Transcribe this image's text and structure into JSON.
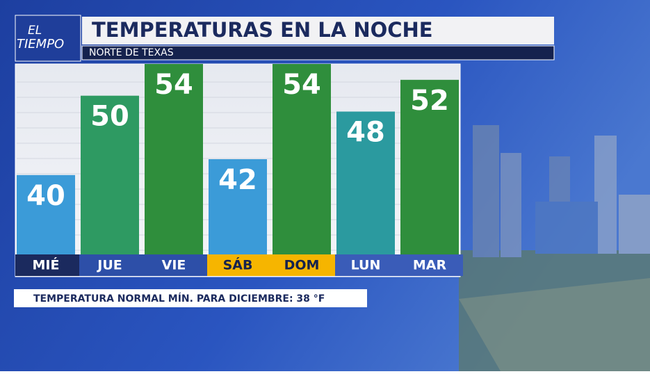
{
  "logo": {
    "line1": "EL",
    "line2": "TIEMPO"
  },
  "chart_data": {
    "type": "bar",
    "title": "TEMPERATURAS EN LA NOCHE",
    "subtitle": "NORTE DE TEXAS",
    "categories": [
      "MIÉ",
      "JUE",
      "VIE",
      "SÁB",
      "DOM",
      "LUN",
      "MAR"
    ],
    "values": [
      40,
      50,
      54,
      42,
      54,
      48,
      52
    ],
    "colors": [
      "#3b9bd8",
      "#2e9a62",
      "#2f8e3c",
      "#3b9bd8",
      "#2f8e3c",
      "#2b9a9f",
      "#2f8e3c"
    ],
    "label_colors": [
      "#1b2a5e",
      "#2d4fa8",
      "#2d4fa8",
      "#f6b500",
      "#f6b500",
      "#3a5cb8",
      "#3a5cb8"
    ],
    "ylim": [
      30,
      54
    ],
    "annotation": "TEMPERATURA NORMAL MÍN. PARA DICIEMBRE: 38 °F"
  }
}
